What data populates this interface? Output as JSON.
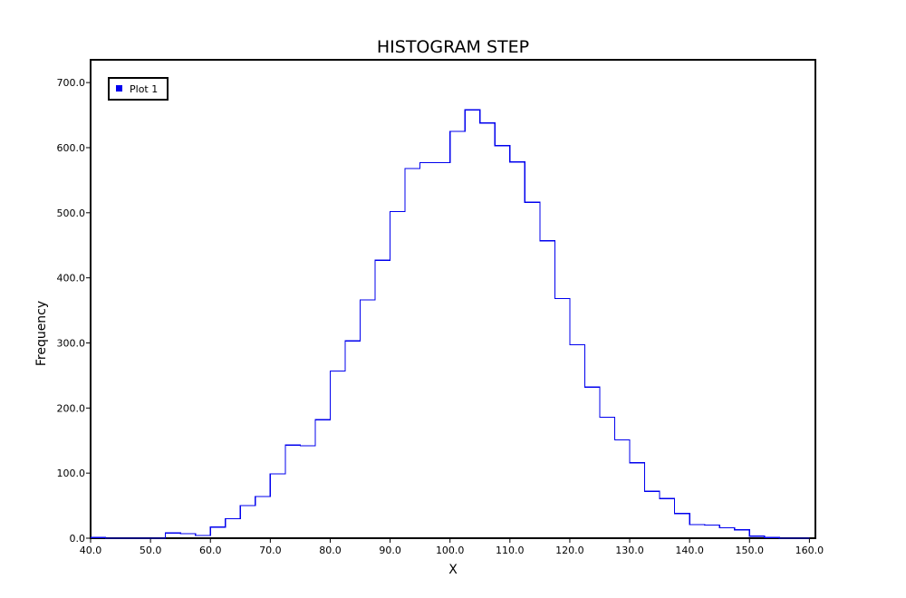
{
  "chart_data": {
    "type": "line",
    "title": "HISTOGRAM STEP",
    "xlabel": "X",
    "ylabel": "Frequency",
    "xlim": [
      40,
      161
    ],
    "ylim": [
      0,
      735
    ],
    "x_ticks": [
      40,
      50,
      60,
      70,
      80,
      90,
      100,
      110,
      120,
      130,
      140,
      150,
      160
    ],
    "x_tick_labels": [
      "40.0",
      "50.0",
      "60.0",
      "70.0",
      "80.0",
      "90.0",
      "100.0",
      "110.0",
      "120.0",
      "130.0",
      "140.0",
      "150.0",
      "160.0"
    ],
    "y_ticks": [
      0,
      100,
      200,
      300,
      400,
      500,
      600,
      700
    ],
    "y_tick_labels": [
      "0.0",
      "100.0",
      "200.0",
      "300.0",
      "400.0",
      "500.0",
      "600.0",
      "700.0"
    ],
    "grid": false,
    "legend_position": "top-left",
    "series": [
      {
        "name": "Plot 1",
        "color": "#0000ee",
        "bin_edges": [
          40.0,
          42.5,
          45.0,
          47.5,
          50.0,
          52.5,
          55.0,
          57.5,
          60.0,
          62.5,
          65.0,
          67.5,
          70.0,
          72.5,
          75.0,
          77.5,
          80.0,
          82.5,
          85.0,
          87.5,
          90.0,
          92.5,
          95.0,
          97.5,
          100.0,
          102.5,
          105.0,
          107.5,
          110.0,
          112.5,
          115.0,
          117.5,
          120.0,
          122.5,
          125.0,
          127.5,
          130.0,
          132.5,
          135.0,
          137.5,
          140.0,
          142.5,
          145.0,
          147.5,
          150.0,
          152.5,
          155.0,
          157.5,
          160.0
        ],
        "frequencies": [
          1,
          0,
          0,
          0,
          0,
          8,
          7,
          4,
          17,
          30,
          50,
          64,
          99,
          143,
          142,
          182,
          257,
          303,
          366,
          427,
          502,
          568,
          577,
          577,
          625,
          658,
          638,
          603,
          578,
          516,
          457,
          368,
          297,
          232,
          186,
          151,
          116,
          72,
          61,
          38,
          21,
          20,
          16,
          13,
          3,
          1,
          0,
          0
        ]
      }
    ]
  }
}
